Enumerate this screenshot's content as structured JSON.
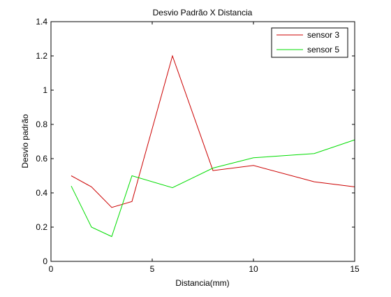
{
  "chart_data": {
    "type": "line",
    "title": "Desvio Padrão X Distancia",
    "xlabel": "Distancia(mm)",
    "ylabel": "Desvio padrão",
    "xlim": [
      0,
      15
    ],
    "ylim": [
      0,
      1.4
    ],
    "xticks": [
      0,
      5,
      10,
      15
    ],
    "yticks": [
      0,
      0.2,
      0.4,
      0.6,
      0.8,
      1,
      1.2,
      1.4
    ],
    "xtick_labels": [
      "0",
      "5",
      "10",
      "15"
    ],
    "ytick_labels": [
      "0",
      "0.2",
      "0.4",
      "0.6",
      "0.8",
      "1",
      "1.2",
      "1.4"
    ],
    "grid": false,
    "legend_position": "top-right",
    "series": [
      {
        "name": "sensor 3",
        "color": "#cc0000",
        "x": [
          1,
          2,
          3,
          4,
          6,
          8,
          10,
          13,
          15
        ],
        "y": [
          0.5,
          0.435,
          0.315,
          0.35,
          1.2,
          0.53,
          0.56,
          0.465,
          0.435
        ]
      },
      {
        "name": "sensor 5",
        "color": "#00dd00",
        "x": [
          1,
          2,
          3,
          4,
          6,
          8,
          10,
          13,
          15
        ],
        "y": [
          0.44,
          0.2,
          0.145,
          0.5,
          0.43,
          0.545,
          0.605,
          0.63,
          0.71
        ]
      }
    ]
  }
}
